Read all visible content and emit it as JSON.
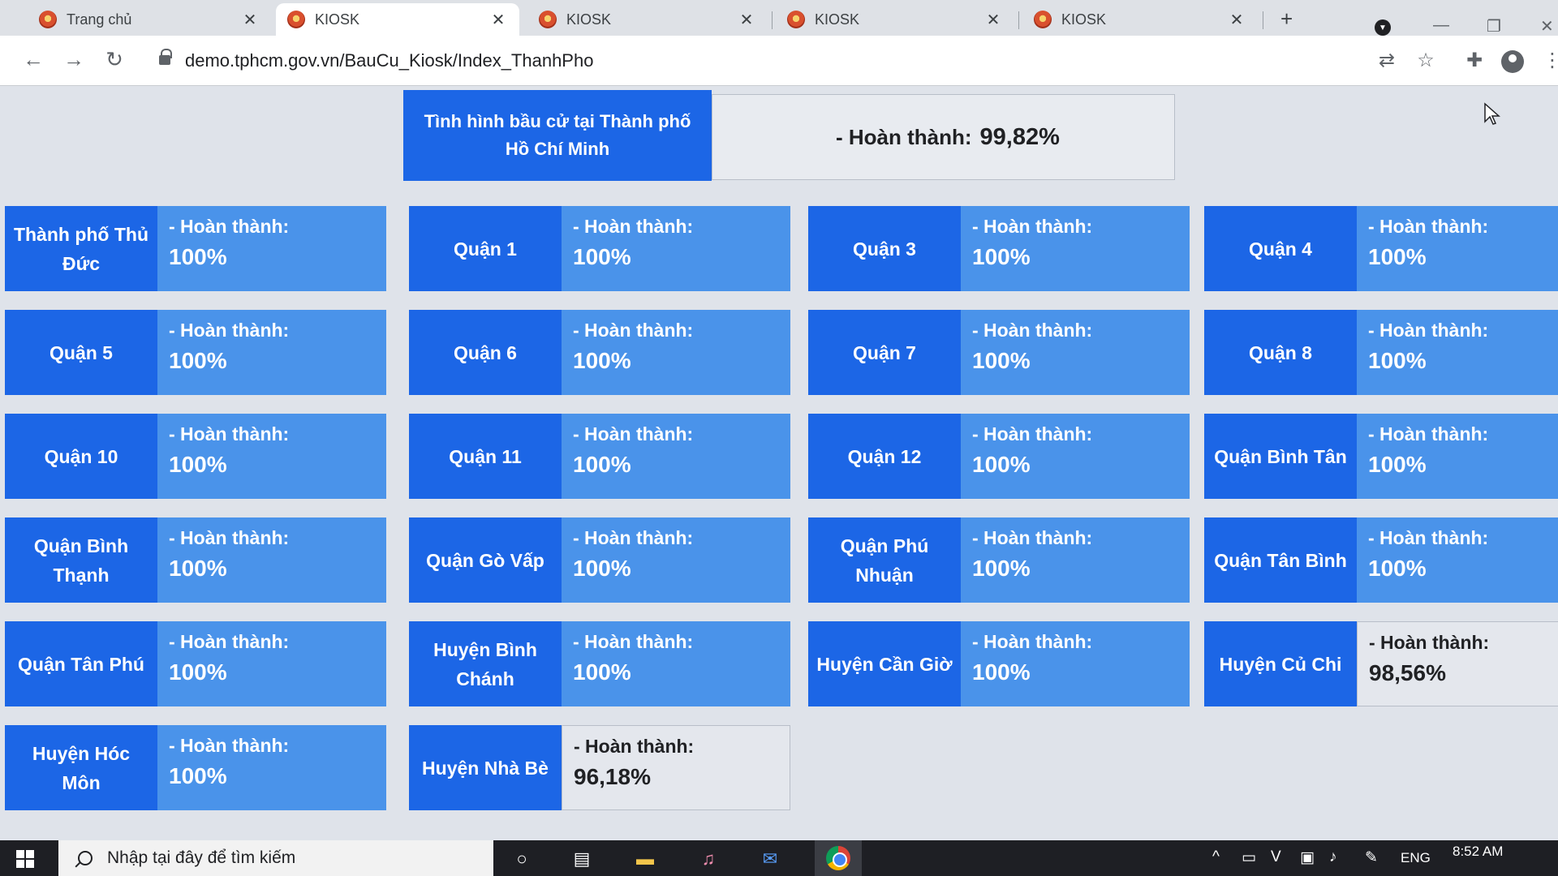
{
  "browser": {
    "tabs": [
      {
        "title": "Trang chủ",
        "active": false
      },
      {
        "title": "KIOSK",
        "active": true
      },
      {
        "title": "KIOSK",
        "active": false
      },
      {
        "title": "KIOSK",
        "active": false
      },
      {
        "title": "KIOSK",
        "active": false
      }
    ],
    "close_glyph": "✕",
    "newtab_glyph": "+",
    "url": "demo.tphcm.gov.vn/BauCu_Kiosk/Index_ThanhPho",
    "icons": [
      "back-icon",
      "forward-icon",
      "reload-icon",
      "lock-icon",
      "translate-icon",
      "star-icon",
      "extensions-icon",
      "profile-icon",
      "menu-icon"
    ]
  },
  "summary": {
    "title": "Tình hình bầu cử tại Thành phố Hồ Chí Minh",
    "label": "- Hoàn thành:",
    "value": "99,82%"
  },
  "status_label": "- Hoàn thành:",
  "districts": [
    {
      "name": "Thành phố Thủ Đức",
      "value": "100%"
    },
    {
      "name": "Quận 1",
      "value": "100%"
    },
    {
      "name": "Quận 3",
      "value": "100%"
    },
    {
      "name": "Quận 4",
      "value": "100%"
    },
    {
      "name": "Quận 5",
      "value": "100%"
    },
    {
      "name": "Quận 6",
      "value": "100%"
    },
    {
      "name": "Quận 7",
      "value": "100%"
    },
    {
      "name": "Quận 8",
      "value": "100%"
    },
    {
      "name": "Quận 10",
      "value": "100%"
    },
    {
      "name": "Quận 11",
      "value": "100%"
    },
    {
      "name": "Quận 12",
      "value": "100%"
    },
    {
      "name": "Quận Bình Tân",
      "value": "100%"
    },
    {
      "name": "Quận Bình Thạnh",
      "value": "100%"
    },
    {
      "name": "Quận Gò Vấp",
      "value": "100%"
    },
    {
      "name": "Quận Phú Nhuận",
      "value": "100%"
    },
    {
      "name": "Quận Tân Bình",
      "value": "100%"
    },
    {
      "name": "Quận Tân Phú",
      "value": "100%"
    },
    {
      "name": "Huyện Bình Chánh",
      "value": "100%"
    },
    {
      "name": "Huyện Cần Giờ",
      "value": "100%"
    },
    {
      "name": "Huyện Củ Chi",
      "value": "98,56%"
    },
    {
      "name": "Huyện Hóc Môn",
      "value": "100%"
    },
    {
      "name": "Huyện Nhà Bè",
      "value": "96,18%"
    }
  ],
  "colors": {
    "district_name_bg": "#1c66e6",
    "complete_bg": "#4a93ea",
    "incomplete_bg": "#e4e7ed"
  },
  "taskbar": {
    "search_placeholder": "Nhập tại đây để tìm kiếm",
    "language": "ENG",
    "time": "8:52 AM",
    "icons": [
      "windows-start-icon",
      "cortana-icon",
      "task-view-icon",
      "file-explorer-icon",
      "music-app-icon",
      "mail-app-icon",
      "chrome-icon"
    ]
  }
}
